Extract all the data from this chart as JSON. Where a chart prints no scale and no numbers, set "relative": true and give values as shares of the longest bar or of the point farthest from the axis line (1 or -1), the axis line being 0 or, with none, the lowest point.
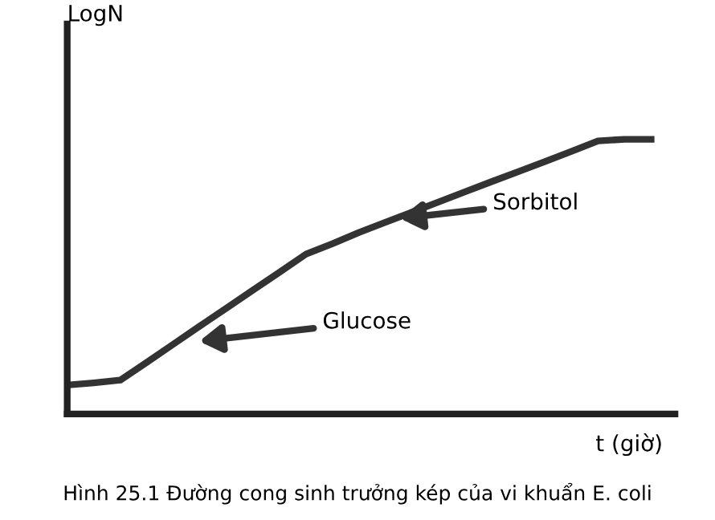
{
  "chart_data": {
    "type": "line",
    "relative": true,
    "xlabel": "t (giờ)",
    "categories": [
      null,
      null,
      null,
      null,
      null,
      null,
      null,
      null,
      null,
      null,
      null,
      null,
      null,
      null,
      null,
      null,
      null,
      null,
      null,
      null,
      null,
      null,
      null
    ],
    "series": [
      {
        "color": "#333333",
        "values": [
          0.105,
          0.113,
          0.123,
          0.188,
          0.254,
          0.32,
          0.385,
          0.451,
          0.516,
          0.582,
          0.62,
          0.661,
          0.698,
          0.735,
          0.772,
          0.809,
          0.846,
          0.882,
          0.919,
          0.956,
          0.994,
          1,
          1
        ]
      }
    ],
    "annotations": [
      "Glucose",
      "Sorbitol",
      "Hình 25.1 Đường cong sinh trưởng kép của vi khuẩn E. coli",
      "LogN"
    ],
    "grid": false,
    "legend": false,
    "marker": "none",
    "line_style": "solid"
  }
}
